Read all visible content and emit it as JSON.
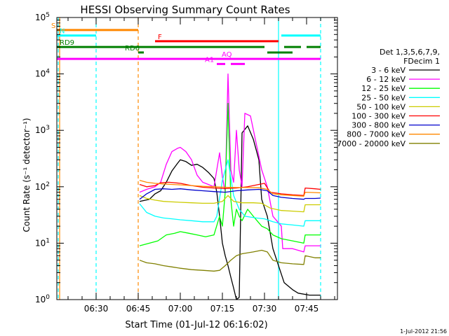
{
  "chart_data": {
    "type": "line",
    "title": "HESSI Observing Summary Count Rates",
    "xlabel": "Start Time (01-Jul-12 06:16:02)",
    "ylabel": "Count Rate (s⁻¹ detector⁻¹)",
    "y_scale": "log",
    "ylim": [
      1,
      100000
    ],
    "xlim": [
      "06:16",
      "07:56"
    ],
    "x_ticks": [
      "06:30",
      "06:45",
      "07:00",
      "07:15",
      "07:30",
      "07:45"
    ],
    "y_ticks": [
      {
        "value": 1,
        "base": "10",
        "exp": "0"
      },
      {
        "value": 10,
        "base": "10",
        "exp": "1"
      },
      {
        "value": 100,
        "base": "10",
        "exp": "2"
      },
      {
        "value": 1000,
        "base": "10",
        "exp": "3"
      },
      {
        "value": 10000,
        "base": "10",
        "exp": "4"
      },
      {
        "value": 100000,
        "base": "10",
        "exp": "5"
      }
    ],
    "legend": {
      "placement": "right",
      "header": [
        "Det 1,3,5,6,7,9,",
        "FDecim 1"
      ]
    },
    "series": [
      {
        "name": "3 - 6 keV",
        "color": "#000000",
        "points": [
          [
            "06:45:30",
            55
          ],
          [
            "06:49",
            60
          ],
          [
            "06:51",
            75
          ],
          [
            "06:53",
            85
          ],
          [
            "06:55",
            120
          ],
          [
            "06:57",
            190
          ],
          [
            "06:59",
            260
          ],
          [
            "07:00",
            300
          ],
          [
            "07:02",
            280
          ],
          [
            "07:04",
            240
          ],
          [
            "07:06",
            250
          ],
          [
            "07:08",
            220
          ],
          [
            "07:10",
            180
          ],
          [
            "07:12",
            140
          ],
          [
            "07:13",
            80
          ],
          [
            "07:14",
            30
          ],
          [
            "07:15",
            10
          ],
          [
            "07:16",
            6
          ],
          [
            "07:17",
            4
          ],
          [
            "07:18",
            2.5
          ],
          [
            "07:19",
            1.6
          ],
          [
            "07:20",
            1
          ],
          [
            "07:21",
            1.1
          ],
          [
            "07:22",
            900
          ],
          [
            "07:24",
            1200
          ],
          [
            "07:26",
            700
          ],
          [
            "07:28",
            300
          ],
          [
            "07:29",
            60
          ],
          [
            "07:31",
            30
          ],
          [
            "07:33",
            8
          ],
          [
            "07:35",
            4
          ],
          [
            "07:37",
            2
          ],
          [
            "07:40",
            1.5
          ],
          [
            "07:42",
            1.3
          ],
          [
            "07:46",
            1.2
          ],
          [
            "07:50",
            1.2
          ]
        ]
      },
      {
        "name": "6 - 12 keV",
        "color": "#ff00ff",
        "points": [
          [
            "06:45:30",
            80
          ],
          [
            "06:48",
            90
          ],
          [
            "06:51",
            100
          ],
          [
            "06:53",
            120
          ],
          [
            "06:55",
            250
          ],
          [
            "06:57",
            420
          ],
          [
            "06:59",
            480
          ],
          [
            "07:00",
            500
          ],
          [
            "07:02",
            420
          ],
          [
            "07:04",
            300
          ],
          [
            "07:06",
            160
          ],
          [
            "07:08",
            120
          ],
          [
            "07:10",
            110
          ],
          [
            "07:12",
            100
          ],
          [
            "07:14",
            400
          ],
          [
            "07:15",
            150
          ],
          [
            "07:16",
            80
          ],
          [
            "07:17",
            10000
          ],
          [
            "07:18",
            200
          ],
          [
            "07:19",
            120
          ],
          [
            "07:20",
            1000
          ],
          [
            "07:21",
            200
          ],
          [
            "07:22",
            100
          ],
          [
            "07:23",
            2000
          ],
          [
            "07:25",
            1800
          ],
          [
            "07:27",
            600
          ],
          [
            "07:29",
            200
          ],
          [
            "07:31",
            100
          ],
          [
            "07:33",
            30
          ],
          [
            "07:36",
            20
          ],
          [
            "07:36:30",
            8
          ],
          [
            "07:40",
            8
          ],
          [
            "07:44",
            7
          ],
          [
            "07:44:30",
            9
          ],
          [
            "07:48",
            9
          ],
          [
            "07:50",
            9
          ]
        ]
      },
      {
        "name": "12 - 25 keV",
        "color": "#00ff00",
        "points": [
          [
            "06:45:30",
            9
          ],
          [
            "06:49",
            10
          ],
          [
            "06:52",
            11
          ],
          [
            "06:55",
            14
          ],
          [
            "06:58",
            15
          ],
          [
            "07:00",
            16
          ],
          [
            "07:03",
            15
          ],
          [
            "07:06",
            14
          ],
          [
            "07:09",
            13
          ],
          [
            "07:12",
            14
          ],
          [
            "07:14",
            30
          ],
          [
            "07:15",
            20
          ],
          [
            "07:16",
            80
          ],
          [
            "07:17",
            3000
          ],
          [
            "07:18",
            60
          ],
          [
            "07:19",
            20
          ],
          [
            "07:20",
            40
          ],
          [
            "07:21",
            30
          ],
          [
            "07:22",
            25
          ],
          [
            "07:24",
            40
          ],
          [
            "07:26",
            30
          ],
          [
            "07:29",
            20
          ],
          [
            "07:31",
            18
          ],
          [
            "07:33",
            14
          ],
          [
            "07:36",
            12
          ],
          [
            "07:40",
            11
          ],
          [
            "07:44",
            10
          ],
          [
            "07:44:30",
            14
          ],
          [
            "07:48",
            14
          ],
          [
            "07:50",
            14
          ]
        ]
      },
      {
        "name": "25 - 50 keV",
        "color": "#00ffff",
        "points": [
          [
            "06:45:30",
            50
          ],
          [
            "06:48",
            35
          ],
          [
            "06:51",
            30
          ],
          [
            "06:54",
            28
          ],
          [
            "06:57",
            27
          ],
          [
            "07:00",
            26
          ],
          [
            "07:04",
            25
          ],
          [
            "07:08",
            24
          ],
          [
            "07:12",
            24
          ],
          [
            "07:13",
            30
          ],
          [
            "07:15",
            130
          ],
          [
            "07:17",
            300
          ],
          [
            "07:19",
            70
          ],
          [
            "07:21",
            40
          ],
          [
            "07:23",
            30
          ],
          [
            "07:27",
            28
          ],
          [
            "07:30",
            27
          ],
          [
            "07:33",
            24
          ],
          [
            "07:36",
            22
          ],
          [
            "07:40",
            21
          ],
          [
            "07:44",
            20
          ],
          [
            "07:44:30",
            25
          ],
          [
            "07:48",
            25
          ],
          [
            "07:50",
            25
          ]
        ]
      },
      {
        "name": "50 - 100 keV",
        "color": "#cccc00",
        "points": [
          [
            "06:45:30",
            70
          ],
          [
            "06:48",
            62
          ],
          [
            "06:51",
            58
          ],
          [
            "06:54",
            55
          ],
          [
            "06:57",
            54
          ],
          [
            "07:00",
            53
          ],
          [
            "07:04",
            52
          ],
          [
            "07:08",
            51
          ],
          [
            "07:12",
            51
          ],
          [
            "07:15",
            55
          ],
          [
            "07:17",
            70
          ],
          [
            "07:19",
            55
          ],
          [
            "07:22",
            52
          ],
          [
            "07:26",
            52
          ],
          [
            "07:29",
            51
          ],
          [
            "07:32",
            42
          ],
          [
            "07:36",
            38
          ],
          [
            "07:40",
            37
          ],
          [
            "07:44",
            36
          ],
          [
            "07:44:30",
            48
          ],
          [
            "07:48",
            48
          ],
          [
            "07:50",
            48
          ]
        ]
      },
      {
        "name": "100 - 300 keV",
        "color": "#ff0000",
        "points": [
          [
            "06:45:30",
            110
          ],
          [
            "06:48",
            100
          ],
          [
            "06:51",
            105
          ],
          [
            "06:53",
            118
          ],
          [
            "06:56",
            120
          ],
          [
            "07:00",
            115
          ],
          [
            "07:04",
            105
          ],
          [
            "07:08",
            98
          ],
          [
            "07:12",
            95
          ],
          [
            "07:16",
            93
          ],
          [
            "07:20",
            95
          ],
          [
            "07:24",
            100
          ],
          [
            "07:28",
            110
          ],
          [
            "07:30",
            115
          ],
          [
            "07:32",
            80
          ],
          [
            "07:36",
            75
          ],
          [
            "07:40",
            72
          ],
          [
            "07:44",
            70
          ],
          [
            "07:44:30",
            95
          ],
          [
            "07:48",
            92
          ],
          [
            "07:50",
            90
          ]
        ]
      },
      {
        "name": "300 - 800 keV",
        "color": "#0000cc",
        "points": [
          [
            "06:45:30",
            60
          ],
          [
            "06:48",
            75
          ],
          [
            "06:51",
            90
          ],
          [
            "06:54",
            92
          ],
          [
            "06:57",
            90
          ],
          [
            "07:00",
            92
          ],
          [
            "07:04",
            88
          ],
          [
            "07:08",
            85
          ],
          [
            "07:12",
            82
          ],
          [
            "07:16",
            80
          ],
          [
            "07:20",
            85
          ],
          [
            "07:24",
            88
          ],
          [
            "07:28",
            90
          ],
          [
            "07:31",
            85
          ],
          [
            "07:33",
            70
          ],
          [
            "07:36",
            65
          ],
          [
            "07:40",
            62
          ],
          [
            "07:44",
            60
          ],
          [
            "07:44:30",
            62
          ],
          [
            "07:48",
            62
          ],
          [
            "07:50",
            63
          ]
        ]
      },
      {
        "name": "800 - 7000 keV",
        "color": "#ff8800",
        "points": [
          [
            "06:45:30",
            130
          ],
          [
            "06:48",
            120
          ],
          [
            "06:51",
            115
          ],
          [
            "06:54",
            112
          ],
          [
            "06:57",
            110
          ],
          [
            "07:00",
            108
          ],
          [
            "07:04",
            105
          ],
          [
            "07:08",
            102
          ],
          [
            "07:12",
            100
          ],
          [
            "07:16",
            98
          ],
          [
            "07:20",
            97
          ],
          [
            "07:24",
            97
          ],
          [
            "07:28",
            96
          ],
          [
            "07:31",
            90
          ],
          [
            "07:33",
            75
          ],
          [
            "07:36",
            72
          ],
          [
            "07:40",
            70
          ],
          [
            "07:44",
            68
          ],
          [
            "07:44:30",
            80
          ],
          [
            "07:48",
            79
          ],
          [
            "07:50",
            78
          ]
        ]
      },
      {
        "name": "7000 - 20000 keV",
        "color": "#808000",
        "points": [
          [
            "06:45:30",
            5
          ],
          [
            "06:48",
            4.5
          ],
          [
            "06:51",
            4.3
          ],
          [
            "06:54",
            4
          ],
          [
            "06:57",
            3.8
          ],
          [
            "07:00",
            3.6
          ],
          [
            "07:04",
            3.4
          ],
          [
            "07:08",
            3.3
          ],
          [
            "07:12",
            3.2
          ],
          [
            "07:14",
            3.3
          ],
          [
            "07:16",
            4
          ],
          [
            "07:18",
            5
          ],
          [
            "07:20",
            6
          ],
          [
            "07:22",
            6.5
          ],
          [
            "07:26",
            7
          ],
          [
            "07:29",
            7.5
          ],
          [
            "07:31",
            7
          ],
          [
            "07:33",
            5
          ],
          [
            "07:36",
            4.5
          ],
          [
            "07:40",
            4.3
          ],
          [
            "07:44",
            4.2
          ],
          [
            "07:44:30",
            6
          ],
          [
            "07:48",
            5.5
          ],
          [
            "07:50",
            5.5
          ]
        ]
      }
    ],
    "flags": [
      {
        "label": "S",
        "color": "#ff8800",
        "level": 60000,
        "segments": [
          [
            "06:16",
            "06:45"
          ]
        ]
      },
      {
        "label": "N",
        "color": "#00ffff",
        "level": 48000,
        "segments": [
          [
            "06:16",
            "06:30"
          ],
          [
            "07:36",
            "07:50"
          ]
        ]
      },
      {
        "label": "F",
        "color": "#ff0000",
        "level": 38000,
        "segments": [
          [
            "06:51",
            "07:35"
          ]
        ]
      },
      {
        "label": "RD9",
        "color": "#008000",
        "level": 30000,
        "segments": [
          [
            "06:16",
            "07:30"
          ],
          [
            "07:37",
            "07:43"
          ],
          [
            "07:45",
            "07:50"
          ]
        ]
      },
      {
        "label": "RD6",
        "color": "#008000",
        "level": 24000,
        "segments": [
          [
            "06:45",
            "06:47"
          ],
          [
            "07:31",
            "07:40"
          ]
        ]
      },
      {
        "label": "AQ",
        "color": "#ff00ff",
        "level": 18500,
        "segments": [
          [
            "06:16",
            "07:50"
          ]
        ]
      },
      {
        "label": "A1",
        "color": "#ff00ff",
        "level": 15000,
        "segments": [
          [
            "07:13",
            "07:16"
          ],
          [
            "07:18",
            "07:23"
          ]
        ]
      }
    ],
    "markers": [
      {
        "time": "06:16:30",
        "color": "#00ffff",
        "style": "dashed"
      },
      {
        "time": "06:17",
        "color": "#ff8800",
        "style": "solid"
      },
      {
        "time": "06:30",
        "color": "#00ffff",
        "style": "dashed"
      },
      {
        "time": "06:45",
        "color": "#ff8800",
        "style": "dashed"
      },
      {
        "time": "07:35",
        "color": "#00ffff",
        "style": "solid"
      },
      {
        "time": "07:50",
        "color": "#00ffff",
        "style": "dashed"
      }
    ],
    "timestamp": "1-Jul-2012 21:56"
  }
}
